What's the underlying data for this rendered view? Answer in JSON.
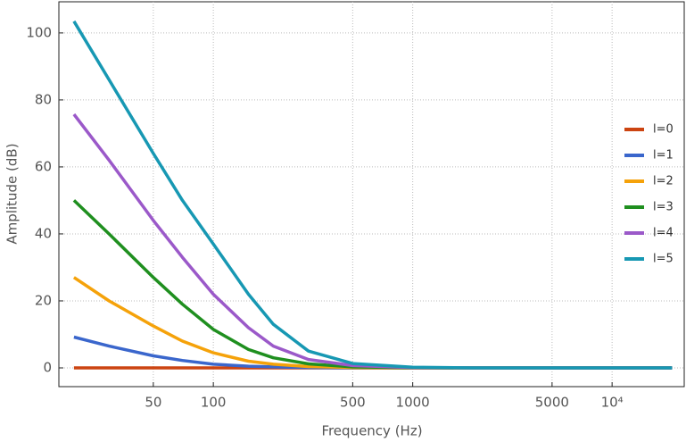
{
  "chart_data": {
    "type": "line",
    "xlabel": "Frequency (Hz)",
    "ylabel": "Amplitude (dB)",
    "log_x": true,
    "grid": true,
    "x": [
      20,
      30,
      50,
      70,
      100,
      150,
      200,
      300,
      500,
      1000,
      2000,
      5000,
      10000,
      20000
    ],
    "series": [
      {
        "name": "l=0",
        "color": "#cc4411",
        "values": [
          0,
          0,
          0,
          0,
          0,
          0,
          0,
          0,
          0,
          0,
          0,
          0,
          0,
          0
        ]
      },
      {
        "name": "l=1",
        "color": "#3a66cc",
        "values": [
          9.2,
          6.5,
          3.6,
          2.2,
          1.1,
          0.5,
          0.3,
          0.1,
          0,
          0,
          0,
          0,
          0,
          0
        ]
      },
      {
        "name": "l=2",
        "color": "#f5a20a",
        "values": [
          27,
          20,
          12.5,
          8,
          4.5,
          2,
          1.1,
          0.4,
          0.1,
          0,
          0,
          0,
          0,
          0
        ]
      },
      {
        "name": "l=3",
        "color": "#1f8f1f",
        "values": [
          50,
          40,
          27,
          19,
          11.5,
          5.5,
          3,
          1.2,
          0.3,
          0.05,
          0,
          0,
          0,
          0
        ]
      },
      {
        "name": "l=4",
        "color": "#9b59c9",
        "values": [
          75.7,
          62,
          44,
          33,
          22,
          12,
          6.5,
          2.5,
          0.7,
          0.1,
          0,
          0,
          0,
          0
        ]
      },
      {
        "name": "l=5",
        "color": "#1798b3",
        "values": [
          103.5,
          86,
          64,
          50,
          37,
          22,
          13,
          5,
          1.3,
          0.2,
          0,
          0,
          0,
          0
        ]
      }
    ],
    "xlim": [
      16.8,
      23000
    ],
    "ylim": [
      -5.6,
      109.3
    ],
    "xticks": [
      50,
      100,
      500,
      1000,
      5000,
      {
        "value": 10000,
        "label": "10⁴"
      }
    ],
    "yticks": [
      0,
      20,
      40,
      60,
      80,
      100
    ]
  }
}
